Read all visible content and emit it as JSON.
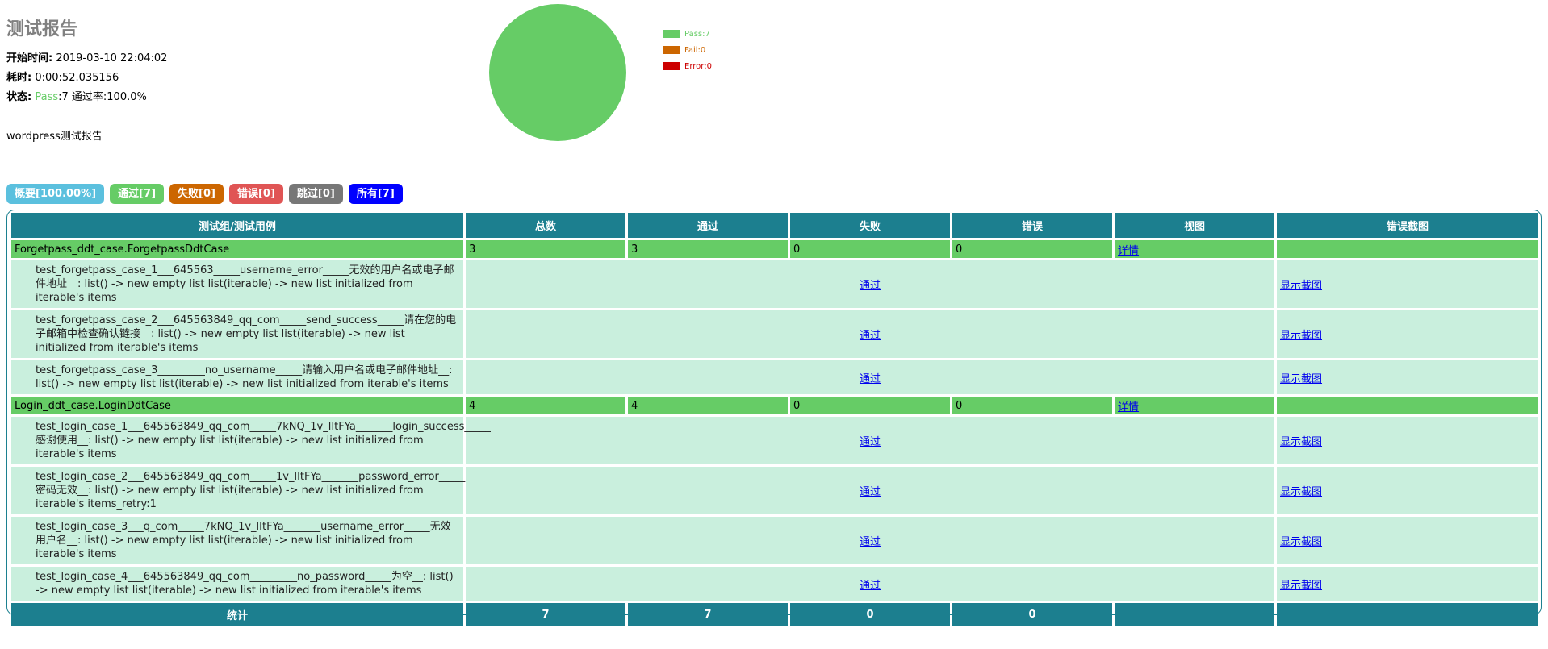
{
  "heading": {
    "title": "测试报告",
    "start_label": "开始时间:",
    "start_value": "2019-03-10 22:04:02",
    "duration_label": "耗时:",
    "duration_value": "0:00:52.035156",
    "status_label": "状态:",
    "status_pass": "Pass",
    "status_rest": ":7 通过率:100.0%",
    "description": "wordpress测试报告"
  },
  "chart_data": {
    "type": "pie",
    "values": [
      7,
      0,
      0
    ],
    "categories": [
      "Pass",
      "Fail",
      "Error"
    ],
    "legend": [
      "Pass:7",
      "Fail:0",
      "Error:0"
    ],
    "colors": [
      "#66cc66",
      "#c60",
      "#c00"
    ]
  },
  "tabs": [
    {
      "label": "概要[100.00%]",
      "color": "#5bc0de"
    },
    {
      "label": "通过[7]",
      "color": "#66cc66"
    },
    {
      "label": "失败[0]",
      "color": "#cc6600"
    },
    {
      "label": "错误[0]",
      "color": "#e05555"
    },
    {
      "label": "跳过[0]",
      "color": "#777777"
    },
    {
      "label": "所有[7]",
      "color": "#0000ff"
    }
  ],
  "table": {
    "headers": [
      "测试组/测试用例",
      "总数",
      "通过",
      "失败",
      "错误",
      "视图",
      "错误截图"
    ],
    "groups": [
      {
        "name": "Forgetpass_ddt_case.ForgetpassDdtCase",
        "count": "3",
        "pass": "3",
        "fail": "0",
        "error": "0",
        "view": "详情",
        "cases": [
          {
            "name": "test_forgetpass_case_1___645563_____username_error_____无效的用户名或电子邮件地址__: list() -> new empty list list(iterable) -> new list initialized from iterable's items",
            "status": "通过",
            "shot": "显示截图"
          },
          {
            "name": "test_forgetpass_case_2___645563849_qq_com_____send_success_____请在您的电子邮箱中检查确认链接__: list() -> new empty list list(iterable) -> new list initialized from iterable's items",
            "status": "通过",
            "shot": "显示截图"
          },
          {
            "name": "test_forgetpass_case_3_________no_username_____请输入用户名或电子邮件地址__: list() -> new empty list list(iterable) -> new list initialized from iterable's items",
            "status": "通过",
            "shot": "显示截图"
          }
        ]
      },
      {
        "name": "Login_ddt_case.LoginDdtCase",
        "count": "4",
        "pass": "4",
        "fail": "0",
        "error": "0",
        "view": "详情",
        "cases": [
          {
            "name": "test_login_case_1___645563849_qq_com_____7kNQ_1v_lItFYa_______login_success_____感谢使用__: list() -> new empty list list(iterable) -> new list initialized from iterable's items",
            "status": "通过",
            "shot": "显示截图"
          },
          {
            "name": "test_login_case_2___645563849_qq_com_____1v_lItFYa_______password_error_____密码无效__: list() -> new empty list list(iterable) -> new list initialized from iterable's items_retry:1",
            "status": "通过",
            "shot": "显示截图"
          },
          {
            "name": "test_login_case_3___q_com_____7kNQ_1v_lItFYa_______username_error_____无效用户名__: list() -> new empty list list(iterable) -> new list initialized from iterable's items",
            "status": "通过",
            "shot": "显示截图"
          },
          {
            "name": "test_login_case_4___645563849_qq_com_________no_password_____为空__: list() -> new empty list list(iterable) -> new list initialized from iterable's items",
            "status": "通过",
            "shot": "显示截图"
          }
        ]
      }
    ],
    "total": {
      "label": "统计",
      "count": "7",
      "pass": "7",
      "fail": "0",
      "error": "0",
      "view": "",
      "shot": ""
    }
  }
}
